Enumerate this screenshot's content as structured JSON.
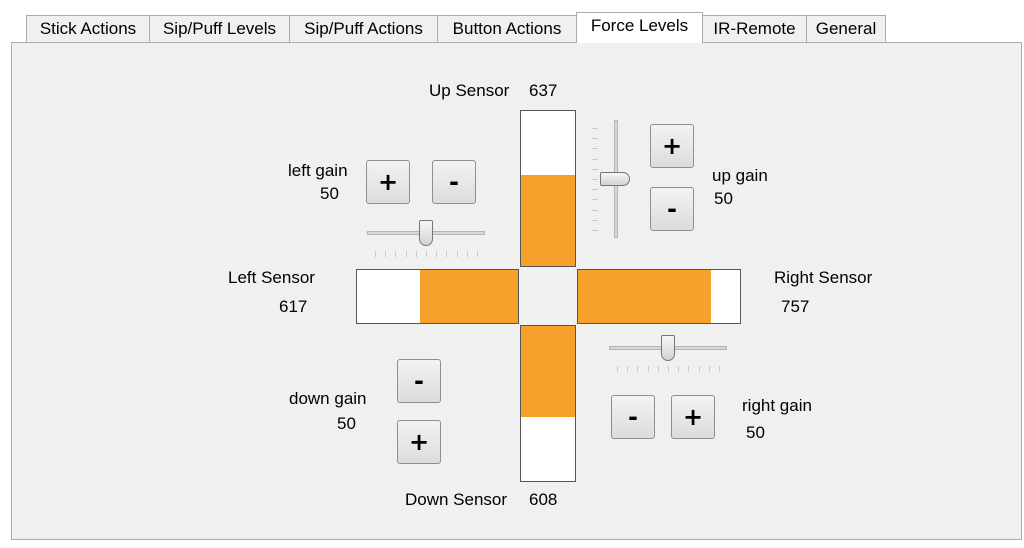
{
  "tabs": [
    {
      "label": "Stick Actions",
      "active": false
    },
    {
      "label": "Sip/Puff Levels",
      "active": false
    },
    {
      "label": "Sip/Puff Actions",
      "active": false
    },
    {
      "label": "Button Actions",
      "active": false
    },
    {
      "label": "Force Levels",
      "active": true
    },
    {
      "label": "IR-Remote",
      "active": false
    },
    {
      "label": "General",
      "active": false
    }
  ],
  "sensors": {
    "up": {
      "label": "Up Sensor",
      "value": "637",
      "level_fraction": 0.59
    },
    "down": {
      "label": "Down Sensor",
      "value": "608",
      "level_fraction": 0.59
    },
    "left": {
      "label": "Left Sensor",
      "value": "617",
      "level_fraction": 0.61
    },
    "right": {
      "label": "Right Sensor",
      "value": "757",
      "level_fraction": 0.82
    }
  },
  "gains": {
    "left": {
      "label": "left gain",
      "value": "50",
      "slider_fraction": 0.5
    },
    "up": {
      "label": "up gain",
      "value": "50",
      "slider_fraction": 0.5
    },
    "down": {
      "label": "down gain",
      "value": "50"
    },
    "right": {
      "label": "right gain",
      "value": "50",
      "slider_fraction": 0.5
    }
  },
  "buttons": {
    "plus": "+",
    "minus": "-"
  },
  "colors": {
    "bar_fill": "#f5a12c",
    "panel_bg": "#f0f0f0"
  }
}
